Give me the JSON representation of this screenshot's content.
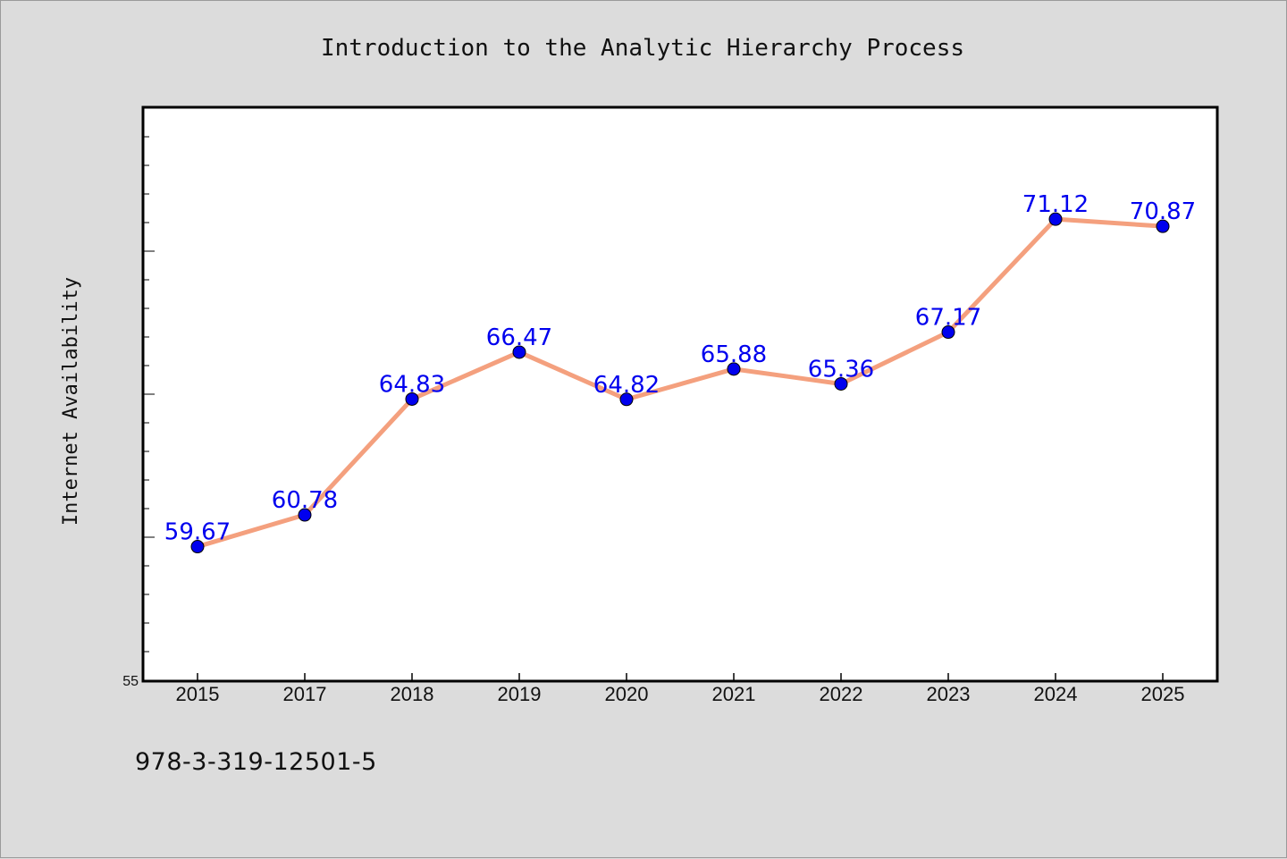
{
  "chart_data": {
    "type": "line",
    "title": "Introduction to the Analytic Hierarchy Process",
    "ylabel": "Internet Availability",
    "xlabel": "",
    "categories": [
      "2015",
      "2017",
      "2018",
      "2019",
      "2020",
      "2021",
      "2022",
      "2023",
      "2024",
      "2025"
    ],
    "series": [
      {
        "values": [
          59.67,
          60.78,
          64.83,
          66.47,
          64.82,
          65.88,
          65.36,
          67.17,
          71.12,
          70.87
        ],
        "line_color": "#f4a07e",
        "marker_color": "#0000ee",
        "label_color": "#0000ee"
      }
    ],
    "ylim": [
      55,
      75
    ],
    "y_tick_labels": [
      "55"
    ],
    "grid": false,
    "legend": "none",
    "plot_background": "#ffffff",
    "figure_background": "#dcdcdc"
  },
  "footer": {
    "isbn": "978-3-319-12501-5"
  }
}
